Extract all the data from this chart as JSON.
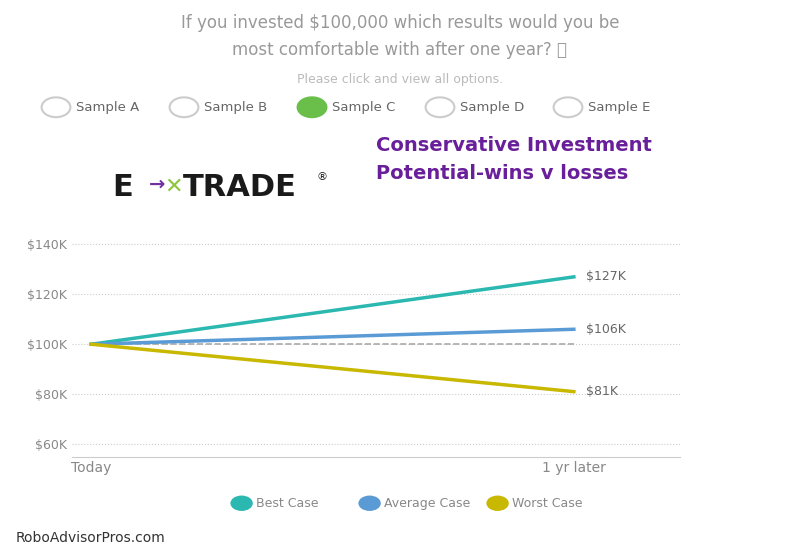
{
  "title_line1": "If you invested $100,000 which results would you be",
  "title_line2": "most comfortable with after one year? ⓘ",
  "subtitle": "Please click and view all options.",
  "chart_title_line1": "Conservative Investment",
  "chart_title_line2": "Potential-wins v losses",
  "sample_labels": [
    "Sample A",
    "Sample B",
    "Sample C",
    "Sample D",
    "Sample E"
  ],
  "selected_sample": "Sample C",
  "x_labels": [
    "Today",
    "1 yr later"
  ],
  "x_values": [
    0,
    1
  ],
  "best_case": [
    100000,
    127000
  ],
  "average_case": [
    100000,
    106000
  ],
  "worst_case": [
    100000,
    81000
  ],
  "reference_line": [
    100000,
    100000
  ],
  "end_labels": [
    "$127K",
    "$106K",
    "$81K"
  ],
  "best_case_color": "#2ab8b0",
  "average_case_color": "#5b9bd5",
  "worst_case_color": "#c8b800",
  "reference_color": "#aaaaaa",
  "bg_color": "#ffffff",
  "chart_title_color": "#6a1f9a",
  "title_color": "#999999",
  "etrade_arrow_color": "#7030a0",
  "etrade_x_color": "#8dc63f",
  "etrade_text_color": "#1a1a1a",
  "y_ticks": [
    60000,
    80000,
    100000,
    120000,
    140000
  ],
  "y_labels": [
    "$60K",
    "$80K",
    "$100K",
    "$120K",
    "$140K"
  ],
  "ylim": [
    55000,
    152000
  ],
  "footer_text": "RoboAdvisorPros.com",
  "legend_entries": [
    "Best Case",
    "Average Case",
    "Worst Case"
  ],
  "sample_unselected_color": "#eeeeee",
  "sample_unselected_edge": "#cccccc",
  "sample_selected_color": "#6abf4b",
  "sample_text_color": "#666666"
}
